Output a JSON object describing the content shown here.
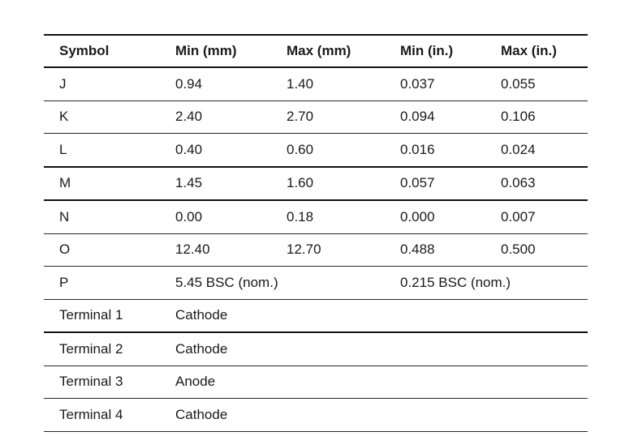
{
  "table": {
    "headers": [
      "Symbol",
      "Min (mm)",
      "Max (mm)",
      "Min (in.)",
      "Max (in.)"
    ],
    "rows": [
      {
        "cells": [
          "J",
          "0.94",
          "1.40",
          "0.037",
          "0.055"
        ]
      },
      {
        "cells": [
          "K",
          "2.40",
          "2.70",
          "0.094",
          "0.106"
        ]
      },
      {
        "cells": [
          "L",
          "0.40",
          "0.60",
          "0.016",
          "0.024"
        ]
      },
      {
        "cells": [
          "M",
          "1.45",
          "1.60",
          "0.057",
          "0.063"
        ]
      },
      {
        "cells": [
          "N",
          "0.00",
          "0.18",
          "0.000",
          "0.007"
        ]
      },
      {
        "cells": [
          "O",
          "12.40",
          "12.70",
          "0.488",
          "0.500"
        ]
      },
      {
        "cells": [
          "P",
          "5.45 BSC (nom.)",
          "",
          "0.215 BSC (nom.)",
          ""
        ]
      },
      {
        "cells": [
          "Terminal 1",
          "Cathode",
          "",
          "",
          ""
        ]
      },
      {
        "cells": [
          "Terminal 2",
          "Cathode",
          "",
          "",
          ""
        ]
      },
      {
        "cells": [
          "Terminal 3",
          "Anode",
          "",
          "",
          ""
        ]
      },
      {
        "cells": [
          "Terminal 4",
          "Cathode",
          "",
          "",
          ""
        ]
      }
    ]
  }
}
